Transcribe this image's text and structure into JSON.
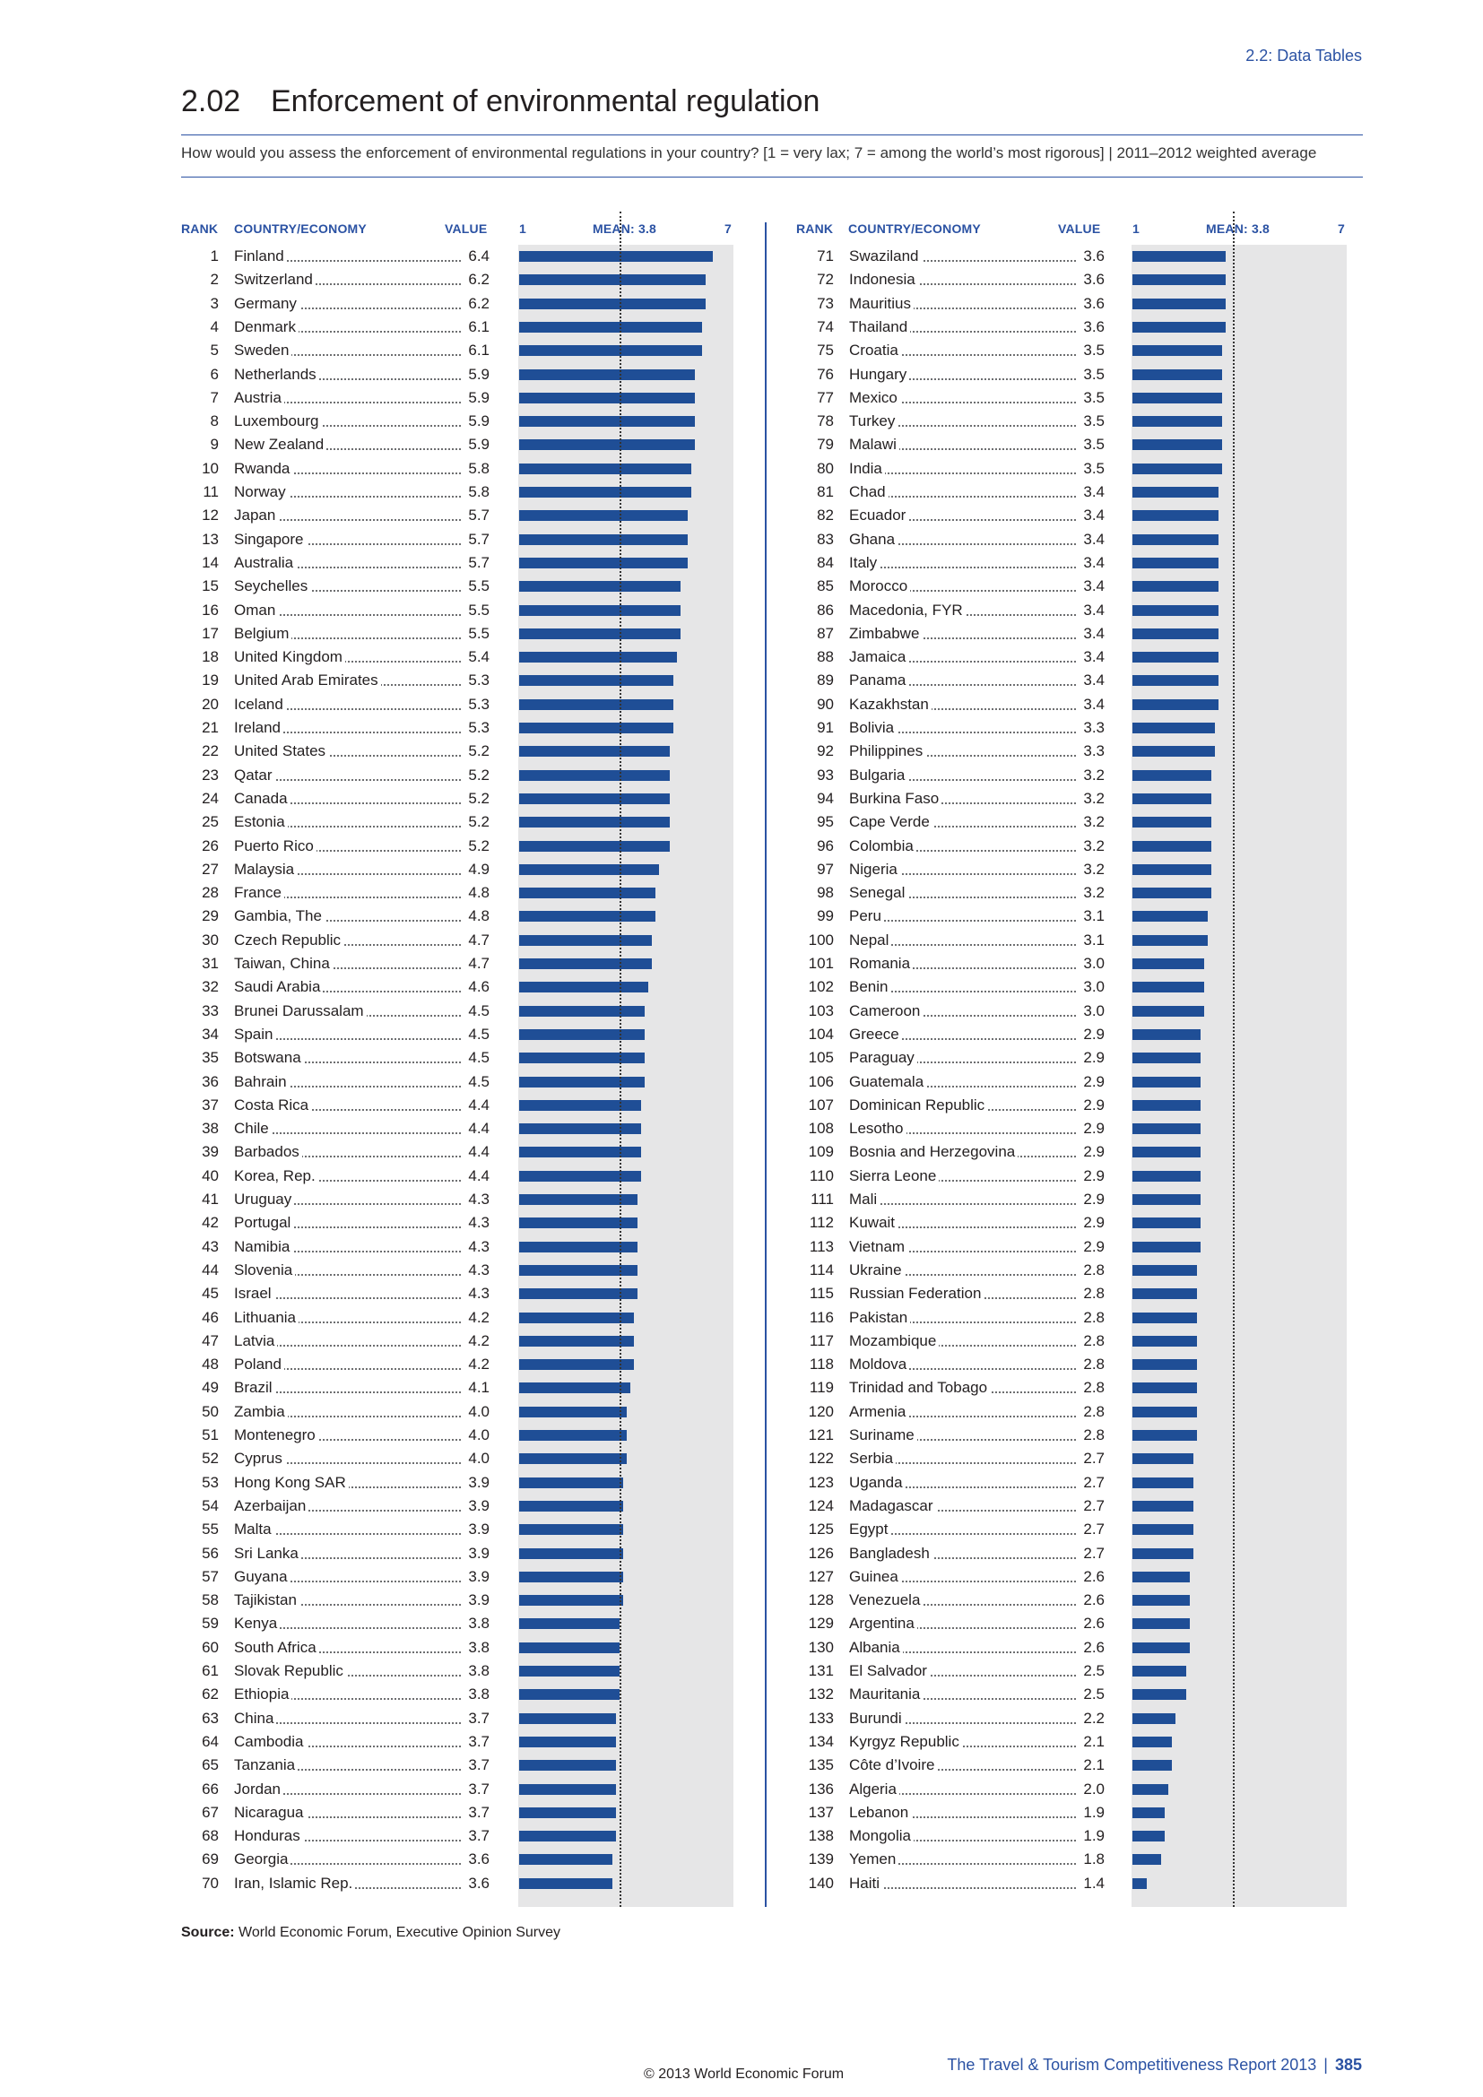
{
  "header": {
    "section": "2.2: Data Tables",
    "number": "2.02",
    "title": "Enforcement of environmental regulation",
    "question": "How would you assess the enforcement of environmental regulations in your country? [1 = very lax; 7 = among the world’s most rigorous] | 2011–2012 weighted average"
  },
  "columns": {
    "rank": "RANK",
    "country": "COUNTRY/ECONOMY",
    "value": "VALUE",
    "scale_min": "1",
    "mean": "MEAN: 3.8",
    "scale_max": "7"
  },
  "chart_data": {
    "type": "bar",
    "scale": [
      1,
      7
    ],
    "mean": 3.8,
    "rows": [
      {
        "rank": "1",
        "country": "Finland",
        "value": "6.4"
      },
      {
        "rank": "2",
        "country": "Switzerland",
        "value": "6.2"
      },
      {
        "rank": "3",
        "country": "Germany",
        "value": "6.2"
      },
      {
        "rank": "4",
        "country": "Denmark",
        "value": "6.1"
      },
      {
        "rank": "5",
        "country": "Sweden",
        "value": "6.1"
      },
      {
        "rank": "6",
        "country": "Netherlands",
        "value": "5.9"
      },
      {
        "rank": "7",
        "country": "Austria",
        "value": "5.9"
      },
      {
        "rank": "8",
        "country": "Luxembourg",
        "value": "5.9"
      },
      {
        "rank": "9",
        "country": "New Zealand",
        "value": "5.9"
      },
      {
        "rank": "10",
        "country": "Rwanda",
        "value": "5.8"
      },
      {
        "rank": "11",
        "country": "Norway",
        "value": "5.8"
      },
      {
        "rank": "12",
        "country": "Japan",
        "value": "5.7"
      },
      {
        "rank": "13",
        "country": "Singapore",
        "value": "5.7"
      },
      {
        "rank": "14",
        "country": "Australia",
        "value": "5.7"
      },
      {
        "rank": "15",
        "country": "Seychelles",
        "value": "5.5"
      },
      {
        "rank": "16",
        "country": "Oman",
        "value": "5.5"
      },
      {
        "rank": "17",
        "country": "Belgium",
        "value": "5.5"
      },
      {
        "rank": "18",
        "country": "United Kingdom",
        "value": "5.4"
      },
      {
        "rank": "19",
        "country": "United Arab Emirates",
        "value": "5.3"
      },
      {
        "rank": "20",
        "country": "Iceland",
        "value": "5.3"
      },
      {
        "rank": "21",
        "country": "Ireland",
        "value": "5.3"
      },
      {
        "rank": "22",
        "country": "United States",
        "value": "5.2"
      },
      {
        "rank": "23",
        "country": "Qatar",
        "value": "5.2"
      },
      {
        "rank": "24",
        "country": "Canada",
        "value": "5.2"
      },
      {
        "rank": "25",
        "country": "Estonia",
        "value": "5.2"
      },
      {
        "rank": "26",
        "country": "Puerto Rico",
        "value": "5.2"
      },
      {
        "rank": "27",
        "country": "Malaysia",
        "value": "4.9"
      },
      {
        "rank": "28",
        "country": "France",
        "value": "4.8"
      },
      {
        "rank": "29",
        "country": "Gambia, The",
        "value": "4.8"
      },
      {
        "rank": "30",
        "country": "Czech Republic",
        "value": "4.7"
      },
      {
        "rank": "31",
        "country": "Taiwan, China",
        "value": "4.7"
      },
      {
        "rank": "32",
        "country": "Saudi Arabia",
        "value": "4.6"
      },
      {
        "rank": "33",
        "country": "Brunei Darussalam",
        "value": "4.5"
      },
      {
        "rank": "34",
        "country": "Spain",
        "value": "4.5"
      },
      {
        "rank": "35",
        "country": "Botswana",
        "value": "4.5"
      },
      {
        "rank": "36",
        "country": "Bahrain",
        "value": "4.5"
      },
      {
        "rank": "37",
        "country": "Costa Rica",
        "value": "4.4"
      },
      {
        "rank": "38",
        "country": "Chile",
        "value": "4.4"
      },
      {
        "rank": "39",
        "country": "Barbados",
        "value": "4.4"
      },
      {
        "rank": "40",
        "country": "Korea, Rep.",
        "value": "4.4"
      },
      {
        "rank": "41",
        "country": "Uruguay",
        "value": "4.3"
      },
      {
        "rank": "42",
        "country": "Portugal",
        "value": "4.3"
      },
      {
        "rank": "43",
        "country": "Namibia",
        "value": "4.3"
      },
      {
        "rank": "44",
        "country": "Slovenia",
        "value": "4.3"
      },
      {
        "rank": "45",
        "country": "Israel",
        "value": "4.3"
      },
      {
        "rank": "46",
        "country": "Lithuania",
        "value": "4.2"
      },
      {
        "rank": "47",
        "country": "Latvia",
        "value": "4.2"
      },
      {
        "rank": "48",
        "country": "Poland",
        "value": "4.2"
      },
      {
        "rank": "49",
        "country": "Brazil",
        "value": "4.1"
      },
      {
        "rank": "50",
        "country": "Zambia",
        "value": "4.0"
      },
      {
        "rank": "51",
        "country": "Montenegro",
        "value": "4.0"
      },
      {
        "rank": "52",
        "country": "Cyprus",
        "value": "4.0"
      },
      {
        "rank": "53",
        "country": "Hong Kong SAR",
        "value": "3.9"
      },
      {
        "rank": "54",
        "country": "Azerbaijan",
        "value": "3.9"
      },
      {
        "rank": "55",
        "country": "Malta",
        "value": "3.9"
      },
      {
        "rank": "56",
        "country": "Sri Lanka",
        "value": "3.9"
      },
      {
        "rank": "57",
        "country": "Guyana",
        "value": "3.9"
      },
      {
        "rank": "58",
        "country": "Tajikistan",
        "value": "3.9"
      },
      {
        "rank": "59",
        "country": "Kenya",
        "value": "3.8"
      },
      {
        "rank": "60",
        "country": "South Africa",
        "value": "3.8"
      },
      {
        "rank": "61",
        "country": "Slovak Republic",
        "value": "3.8"
      },
      {
        "rank": "62",
        "country": "Ethiopia",
        "value": "3.8"
      },
      {
        "rank": "63",
        "country": "China",
        "value": "3.7"
      },
      {
        "rank": "64",
        "country": "Cambodia",
        "value": "3.7"
      },
      {
        "rank": "65",
        "country": "Tanzania",
        "value": "3.7"
      },
      {
        "rank": "66",
        "country": "Jordan",
        "value": "3.7"
      },
      {
        "rank": "67",
        "country": "Nicaragua",
        "value": "3.7"
      },
      {
        "rank": "68",
        "country": "Honduras",
        "value": "3.7"
      },
      {
        "rank": "69",
        "country": "Georgia",
        "value": "3.6"
      },
      {
        "rank": "70",
        "country": "Iran, Islamic Rep.",
        "value": "3.6"
      },
      {
        "rank": "71",
        "country": "Swaziland",
        "value": "3.6"
      },
      {
        "rank": "72",
        "country": "Indonesia",
        "value": "3.6"
      },
      {
        "rank": "73",
        "country": "Mauritius",
        "value": "3.6"
      },
      {
        "rank": "74",
        "country": "Thailand",
        "value": "3.6"
      },
      {
        "rank": "75",
        "country": "Croatia",
        "value": "3.5"
      },
      {
        "rank": "76",
        "country": "Hungary",
        "value": "3.5"
      },
      {
        "rank": "77",
        "country": "Mexico",
        "value": "3.5"
      },
      {
        "rank": "78",
        "country": "Turkey",
        "value": "3.5"
      },
      {
        "rank": "79",
        "country": "Malawi",
        "value": "3.5"
      },
      {
        "rank": "80",
        "country": "India",
        "value": "3.5"
      },
      {
        "rank": "81",
        "country": "Chad",
        "value": "3.4"
      },
      {
        "rank": "82",
        "country": "Ecuador",
        "value": "3.4"
      },
      {
        "rank": "83",
        "country": "Ghana",
        "value": "3.4"
      },
      {
        "rank": "84",
        "country": "Italy",
        "value": "3.4"
      },
      {
        "rank": "85",
        "country": "Morocco",
        "value": "3.4"
      },
      {
        "rank": "86",
        "country": "Macedonia, FYR",
        "value": "3.4"
      },
      {
        "rank": "87",
        "country": "Zimbabwe",
        "value": "3.4"
      },
      {
        "rank": "88",
        "country": "Jamaica",
        "value": "3.4"
      },
      {
        "rank": "89",
        "country": "Panama",
        "value": "3.4"
      },
      {
        "rank": "90",
        "country": "Kazakhstan",
        "value": "3.4"
      },
      {
        "rank": "91",
        "country": "Bolivia",
        "value": "3.3"
      },
      {
        "rank": "92",
        "country": "Philippines",
        "value": "3.3"
      },
      {
        "rank": "93",
        "country": "Bulgaria",
        "value": "3.2"
      },
      {
        "rank": "94",
        "country": "Burkina Faso",
        "value": "3.2"
      },
      {
        "rank": "95",
        "country": "Cape Verde",
        "value": "3.2"
      },
      {
        "rank": "96",
        "country": "Colombia",
        "value": "3.2"
      },
      {
        "rank": "97",
        "country": "Nigeria",
        "value": "3.2"
      },
      {
        "rank": "98",
        "country": "Senegal",
        "value": "3.2"
      },
      {
        "rank": "99",
        "country": "Peru",
        "value": "3.1"
      },
      {
        "rank": "100",
        "country": "Nepal",
        "value": "3.1"
      },
      {
        "rank": "101",
        "country": "Romania",
        "value": "3.0"
      },
      {
        "rank": "102",
        "country": "Benin",
        "value": "3.0"
      },
      {
        "rank": "103",
        "country": "Cameroon",
        "value": "3.0"
      },
      {
        "rank": "104",
        "country": "Greece",
        "value": "2.9"
      },
      {
        "rank": "105",
        "country": "Paraguay",
        "value": "2.9"
      },
      {
        "rank": "106",
        "country": "Guatemala",
        "value": "2.9"
      },
      {
        "rank": "107",
        "country": "Dominican Republic",
        "value": "2.9"
      },
      {
        "rank": "108",
        "country": "Lesotho",
        "value": "2.9"
      },
      {
        "rank": "109",
        "country": "Bosnia and Herzegovina",
        "value": "2.9"
      },
      {
        "rank": "110",
        "country": "Sierra Leone",
        "value": "2.9"
      },
      {
        "rank": "111",
        "country": "Mali",
        "value": "2.9"
      },
      {
        "rank": "112",
        "country": "Kuwait",
        "value": "2.9"
      },
      {
        "rank": "113",
        "country": "Vietnam",
        "value": "2.9"
      },
      {
        "rank": "114",
        "country": "Ukraine",
        "value": "2.8"
      },
      {
        "rank": "115",
        "country": "Russian Federation",
        "value": "2.8"
      },
      {
        "rank": "116",
        "country": "Pakistan",
        "value": "2.8"
      },
      {
        "rank": "117",
        "country": "Mozambique",
        "value": "2.8"
      },
      {
        "rank": "118",
        "country": "Moldova",
        "value": "2.8"
      },
      {
        "rank": "119",
        "country": "Trinidad and Tobago",
        "value": "2.8"
      },
      {
        "rank": "120",
        "country": "Armenia",
        "value": "2.8"
      },
      {
        "rank": "121",
        "country": "Suriname",
        "value": "2.8"
      },
      {
        "rank": "122",
        "country": "Serbia",
        "value": "2.7"
      },
      {
        "rank": "123",
        "country": "Uganda",
        "value": "2.7"
      },
      {
        "rank": "124",
        "country": "Madagascar",
        "value": "2.7"
      },
      {
        "rank": "125",
        "country": "Egypt",
        "value": "2.7"
      },
      {
        "rank": "126",
        "country": "Bangladesh",
        "value": "2.7"
      },
      {
        "rank": "127",
        "country": "Guinea",
        "value": "2.6"
      },
      {
        "rank": "128",
        "country": "Venezuela",
        "value": "2.6"
      },
      {
        "rank": "129",
        "country": "Argentina",
        "value": "2.6"
      },
      {
        "rank": "130",
        "country": "Albania",
        "value": "2.6"
      },
      {
        "rank": "131",
        "country": "El Salvador",
        "value": "2.5"
      },
      {
        "rank": "132",
        "country": "Mauritania",
        "value": "2.5"
      },
      {
        "rank": "133",
        "country": "Burundi",
        "value": "2.2"
      },
      {
        "rank": "134",
        "country": "Kyrgyz Republic",
        "value": "2.1"
      },
      {
        "rank": "135",
        "country": "Côte d’Ivoire",
        "value": "2.1"
      },
      {
        "rank": "136",
        "country": "Algeria",
        "value": "2.0"
      },
      {
        "rank": "137",
        "country": "Lebanon",
        "value": "1.9"
      },
      {
        "rank": "138",
        "country": "Mongolia",
        "value": "1.9"
      },
      {
        "rank": "139",
        "country": "Yemen",
        "value": "1.8"
      },
      {
        "rank": "140",
        "country": "Haiti",
        "value": "1.4"
      }
    ]
  },
  "footer": {
    "source_label": "Source:",
    "source_text": "World Economic Forum, Executive Opinion Survey",
    "report": "The Travel & Tourism Competitiveness Report 2013",
    "separator": "|",
    "page": "385",
    "copyright": "© 2013 World Economic Forum"
  },
  "colors": {
    "accent": "#2b52a3",
    "bar": "#1f4e96",
    "panel": "#e6e6e7"
  }
}
